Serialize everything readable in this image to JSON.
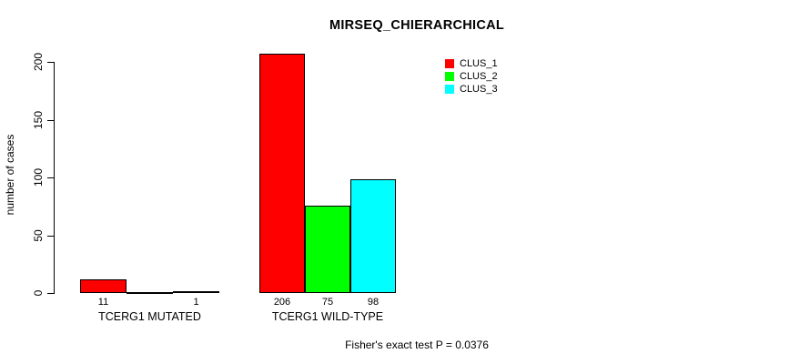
{
  "chart_data": {
    "type": "bar",
    "title": "MIRSEQ_CHIERARCHICAL",
    "ylabel": "number of cases",
    "xlabel": "",
    "ylim": [
      0,
      200
    ],
    "yticks": [
      0,
      50,
      100,
      150,
      200
    ],
    "grid": false,
    "legend_position": "top-right",
    "categories": [
      "TCERG1 MUTATED",
      "TCERG1 WILD-TYPE"
    ],
    "series": [
      {
        "name": "CLUS_1",
        "color": "#ff0000",
        "values": [
          11,
          206
        ]
      },
      {
        "name": "CLUS_2",
        "color": "#00ff00",
        "values": [
          0,
          75
        ]
      },
      {
        "name": "CLUS_3",
        "color": "#00ffff",
        "values": [
          1,
          98
        ]
      }
    ],
    "bar_value_labels": [
      [
        "11",
        "",
        "1"
      ],
      [
        "206",
        "75",
        "98"
      ]
    ],
    "legend": [
      "CLUS_1",
      "CLUS_2",
      "CLUS_3"
    ],
    "footnote": "Fisher's exact test P = 0.0376"
  },
  "colors": {
    "bar_border": "#000000",
    "axis": "#000000",
    "background": "#ffffff"
  }
}
